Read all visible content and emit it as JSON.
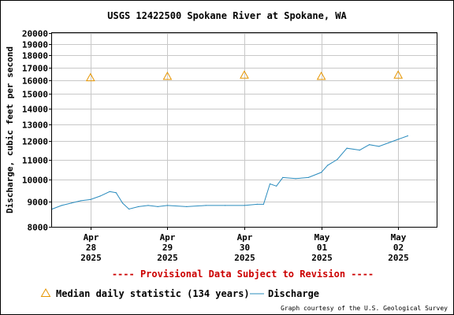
{
  "colors": {
    "discharge": "#2b8cbe",
    "median": "#e69500",
    "provisional": "#cc0000",
    "grid": "#c8c8c8"
  },
  "provisional_note": "---- Provisional Data Subject to Revision ----",
  "credit": "Graph courtesy of the U.S. Geological Survey",
  "chart_data": {
    "type": "line",
    "title": "USGS 12422500 Spokane River at Spokane, WA",
    "ylabel": "Discharge, cubic feet per second",
    "xlabel": "",
    "ylim": [
      8000,
      20000
    ],
    "y_scale": "log",
    "y_ticks": [
      "8000",
      "9000",
      "10000",
      "11000",
      "12000",
      "13000",
      "14000",
      "15000",
      "16000",
      "17000",
      "18000",
      "19000",
      "20000"
    ],
    "x_ticks": [
      {
        "date": "2025-04-28",
        "label": [
          "Apr",
          "28",
          "2025"
        ]
      },
      {
        "date": "2025-04-29",
        "label": [
          "Apr",
          "29",
          "2025"
        ]
      },
      {
        "date": "2025-04-30",
        "label": [
          "Apr",
          "30",
          "2025"
        ]
      },
      {
        "date": "2025-05-01",
        "label": [
          "May",
          "01",
          "2025"
        ]
      },
      {
        "date": "2025-05-02",
        "label": [
          "May",
          "02",
          "2025"
        ]
      }
    ],
    "xlim": [
      "2025-04-27 12:00",
      "2025-05-02 12:00"
    ],
    "grid": true,
    "legend_position": "bottom",
    "series": [
      {
        "name": "Median daily statistic (134 years)",
        "kind": "marker",
        "x": [
          "2025-04-28 00:00",
          "2025-04-29 00:00",
          "2025-04-30 00:00",
          "2025-05-01 00:00",
          "2025-05-02 00:00"
        ],
        "values": [
          16200,
          16300,
          16400,
          16300,
          16400
        ]
      },
      {
        "name": "Discharge",
        "kind": "line",
        "x": [
          "2025-04-27 12:00",
          "2025-04-27 15:00",
          "2025-04-27 18:00",
          "2025-04-27 21:00",
          "2025-04-28 00:00",
          "2025-04-28 03:00",
          "2025-04-28 06:00",
          "2025-04-28 08:00",
          "2025-04-28 10:00",
          "2025-04-28 12:00",
          "2025-04-28 15:00",
          "2025-04-28 18:00",
          "2025-04-28 21:00",
          "2025-04-29 00:00",
          "2025-04-29 06:00",
          "2025-04-29 12:00",
          "2025-04-29 18:00",
          "2025-04-30 00:00",
          "2025-04-30 04:00",
          "2025-04-30 06:00",
          "2025-04-30 08:00",
          "2025-04-30 10:00",
          "2025-04-30 12:00",
          "2025-04-30 16:00",
          "2025-04-30 20:00",
          "2025-05-01 00:00",
          "2025-05-01 02:00",
          "2025-05-01 05:00",
          "2025-05-01 08:00",
          "2025-05-01 12:00",
          "2025-05-01 15:00",
          "2025-05-01 18:00",
          "2025-05-01 21:00",
          "2025-05-02 00:00",
          "2025-05-02 03:00"
        ],
        "values": [
          8700,
          8850,
          8950,
          9050,
          9100,
          9250,
          9450,
          9400,
          8950,
          8700,
          8800,
          8850,
          8800,
          8850,
          8800,
          8850,
          8850,
          8850,
          8900,
          8900,
          9800,
          9700,
          10100,
          10050,
          10100,
          10350,
          10700,
          11000,
          11600,
          11500,
          11800,
          11700,
          11900,
          12100,
          12300
        ]
      }
    ]
  }
}
